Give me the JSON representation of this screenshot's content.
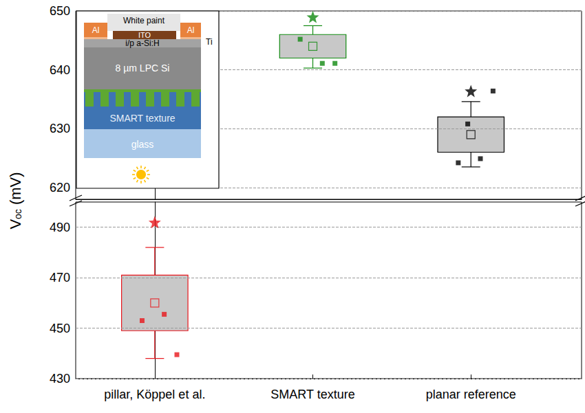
{
  "chart_data": {
    "type": "boxplot",
    "ylabel": {
      "symbol": "V",
      "subscript": "oc",
      "unit": "(mV)"
    },
    "categories": [
      "pillar, Köppel et al.",
      "SMART texture",
      "planar reference"
    ],
    "y_segments": [
      {
        "ylim": [
          430,
          500
        ],
        "yticks": [
          430,
          450,
          470,
          490
        ]
      },
      {
        "ylim": [
          618,
          650
        ],
        "yticks": [
          620,
          630,
          640,
          650
        ]
      }
    ],
    "grid": true,
    "boxes": [
      {
        "color": "#e8161c",
        "whisker_low": 438,
        "q1": 449,
        "mean": 460,
        "q3": 471,
        "whisker_high": 482,
        "points": [
          453,
          455.5,
          439.5
        ],
        "star": 492
      },
      {
        "color": "#128a12",
        "whisker_low": 640.3,
        "q1": 642,
        "mean": 644,
        "q3": 646,
        "whisker_high": 647.5,
        "points": [
          645.2,
          641.1,
          641.1
        ],
        "star": 649
      },
      {
        "color": "#000000",
        "whisker_low": 623.5,
        "q1": 626,
        "mean": 629,
        "q3": 632,
        "whisker_high": 634.6,
        "points": [
          624.2,
          624.9,
          636.4,
          630.8
        ],
        "star": 636.4
      }
    ],
    "inset": {
      "paint": "White paint",
      "ito": "ITO",
      "contact": "Al",
      "ti": "Ti",
      "emitter": "i/p a-Si:H",
      "absorber": "8 µm LPC Si",
      "texture": "SMART texture",
      "substrate": "glass"
    }
  }
}
